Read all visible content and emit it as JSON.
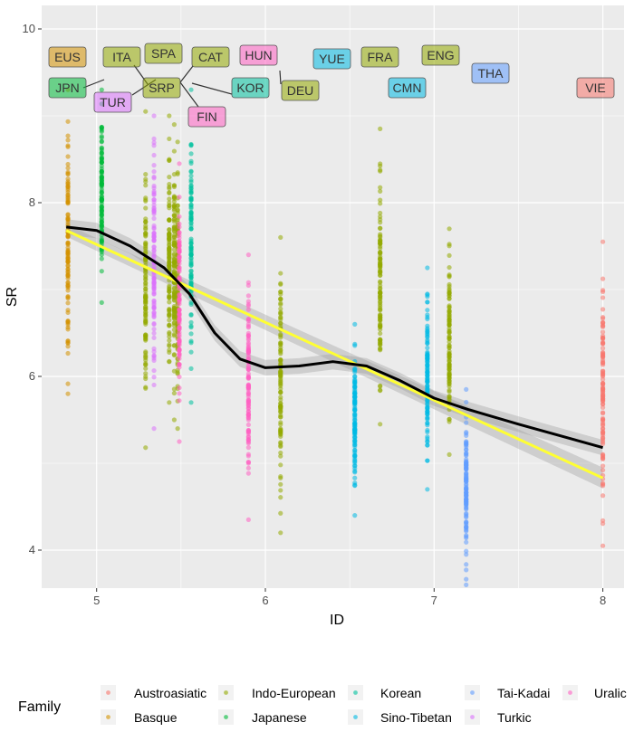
{
  "chart_data": {
    "type": "scatter",
    "xlabel": "ID",
    "ylabel": "SR",
    "xlim": [
      4.67,
      8.12
    ],
    "ylim": [
      3.3,
      10.25
    ],
    "xticks": [
      "5",
      "6",
      "7",
      "8"
    ],
    "yticks": [
      "4",
      "6",
      "8",
      "10"
    ],
    "grid": true,
    "legend": {
      "title": "Family",
      "placement": "bottom"
    },
    "families": [
      {
        "name": "Austroasiatic",
        "color": "#F8766D"
      },
      {
        "name": "Basque",
        "color": "#D39200"
      },
      {
        "name": "Indo-European",
        "color": "#93AA00"
      },
      {
        "name": "Japanese",
        "color": "#00BA38"
      },
      {
        "name": "Korean",
        "color": "#00C19F"
      },
      {
        "name": "Sino-Tibetan",
        "color": "#00B9E3"
      },
      {
        "name": "Tai-Kadai",
        "color": "#619CFF"
      },
      {
        "name": "Turkic",
        "color": "#DB72FB"
      },
      {
        "name": "Uralic",
        "color": "#FF61C3"
      }
    ],
    "languages": [
      {
        "code": "EUS",
        "family": "Basque",
        "id": 4.83,
        "sr_min": 5.8,
        "sr_max": 9.3
      },
      {
        "code": "JPN",
        "family": "Japanese",
        "id": 5.03,
        "sr_min": 6.85,
        "sr_max": 9.3
      },
      {
        "code": "ITA",
        "family": "Indo-European",
        "id": 5.29,
        "sr_min": 5.18,
        "sr_max": 9.05
      },
      {
        "code": "TUR",
        "family": "Turkic",
        "id": 5.34,
        "sr_min": 5.4,
        "sr_max": 9.0
      },
      {
        "code": "SRP",
        "family": "Indo-European",
        "id": 5.43,
        "sr_min": 5.7,
        "sr_max": 9.0
      },
      {
        "code": "SPA",
        "family": "Indo-European",
        "id": 5.46,
        "sr_min": 5.5,
        "sr_max": 8.9
      },
      {
        "code": "CAT",
        "family": "Indo-European",
        "id": 5.48,
        "sr_min": 5.4,
        "sr_max": 8.7
      },
      {
        "code": "FIN",
        "family": "Uralic",
        "id": 5.49,
        "sr_min": 5.25,
        "sr_max": 8.45
      },
      {
        "code": "KOR",
        "family": "Korean",
        "id": 5.56,
        "sr_min": 5.7,
        "sr_max": 9.3
      },
      {
        "code": "HUN",
        "family": "Uralic",
        "id": 5.9,
        "sr_min": 4.35,
        "sr_max": 7.4
      },
      {
        "code": "DEU",
        "family": "Indo-European",
        "id": 6.09,
        "sr_min": 4.2,
        "sr_max": 7.6
      },
      {
        "code": "YUE",
        "family": "Sino-Tibetan",
        "id": 6.53,
        "sr_min": 4.4,
        "sr_max": 6.6
      },
      {
        "code": "FRA",
        "family": "Indo-European",
        "id": 6.68,
        "sr_min": 5.45,
        "sr_max": 8.85
      },
      {
        "code": "CMN",
        "family": "Sino-Tibetan",
        "id": 6.96,
        "sr_min": 4.7,
        "sr_max": 7.25
      },
      {
        "code": "ENG",
        "family": "Indo-European",
        "id": 7.09,
        "sr_min": 5.1,
        "sr_max": 7.7
      },
      {
        "code": "THA",
        "family": "Tai-Kadai",
        "id": 7.19,
        "sr_min": 3.6,
        "sr_max": 5.85
      },
      {
        "code": "VIE",
        "family": "Austroasiatic",
        "id": 8.0,
        "sr_min": 4.05,
        "sr_max": 7.55
      }
    ],
    "loess_fit": [
      [
        4.82,
        7.72
      ],
      [
        5.0,
        7.68
      ],
      [
        5.2,
        7.5
      ],
      [
        5.4,
        7.25
      ],
      [
        5.55,
        6.95
      ],
      [
        5.7,
        6.5
      ],
      [
        5.85,
        6.2
      ],
      [
        6.0,
        6.1
      ],
      [
        6.2,
        6.12
      ],
      [
        6.4,
        6.17
      ],
      [
        6.6,
        6.12
      ],
      [
        6.8,
        5.95
      ],
      [
        7.0,
        5.75
      ],
      [
        7.2,
        5.62
      ],
      [
        7.5,
        5.45
      ],
      [
        8.0,
        5.18
      ]
    ],
    "linear_fit": [
      [
        4.82,
        7.68
      ],
      [
        8.0,
        4.83
      ]
    ],
    "loess_color": "#000000",
    "linear_color": "#FFFF33"
  }
}
